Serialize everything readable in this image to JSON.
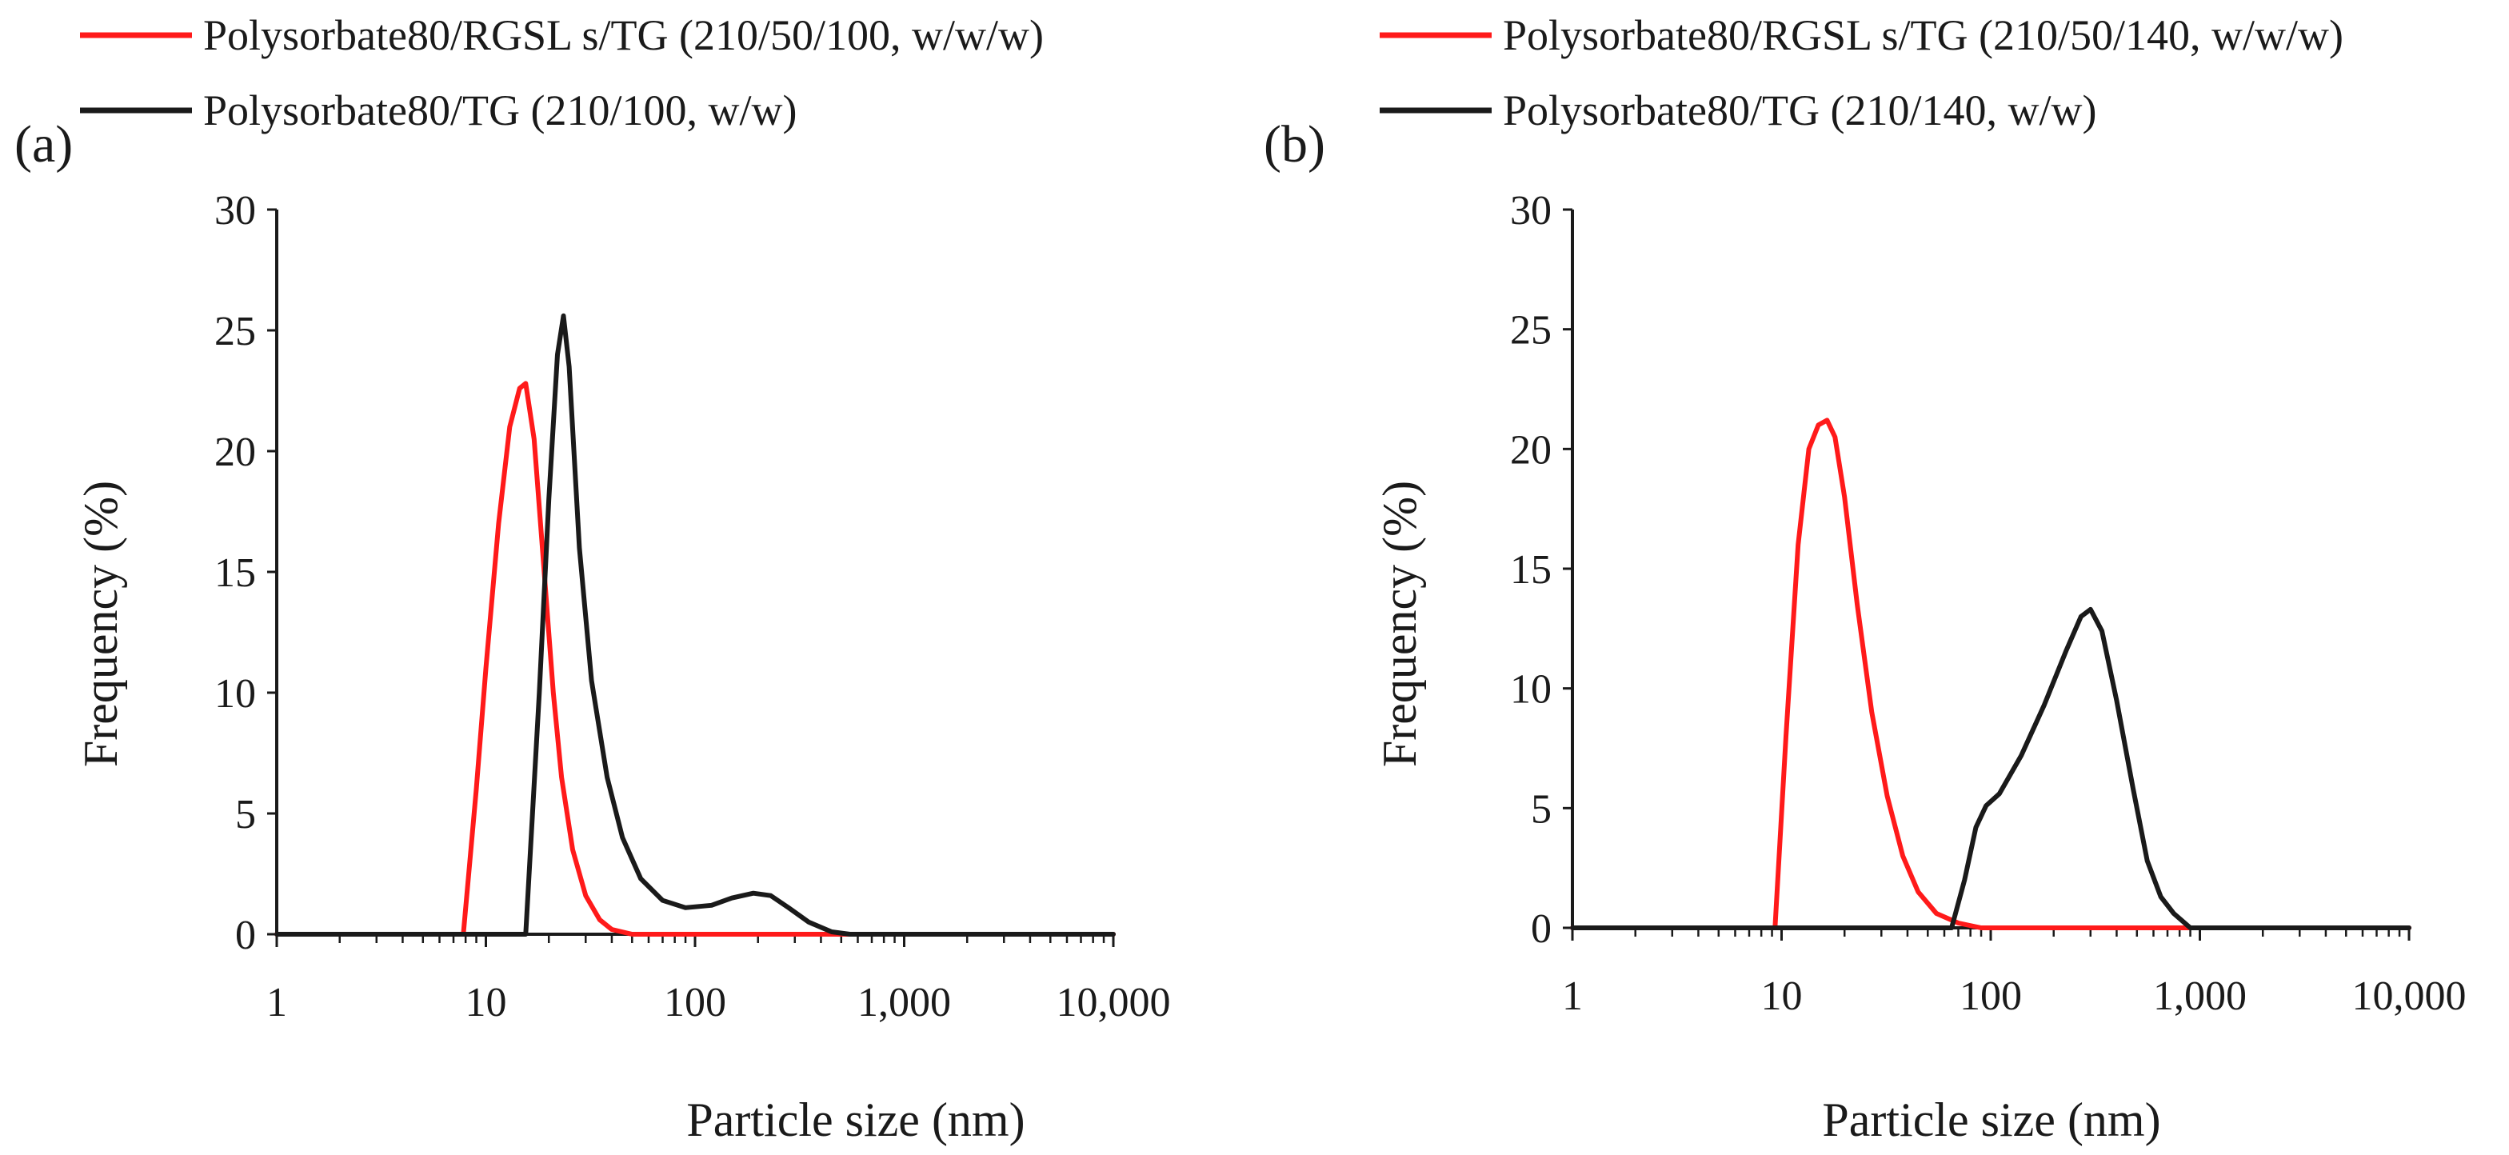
{
  "colors": {
    "red": "#ff1a1a",
    "black": "#1a1a1a"
  },
  "chart_data": [
    {
      "type": "line",
      "panel_label": "(a)",
      "xscale": "log",
      "xlim": [
        1,
        10000
      ],
      "ylim": [
        0,
        30
      ],
      "xticks": [
        1,
        10,
        100,
        1000,
        10000
      ],
      "xtick_labels": [
        "1",
        "10",
        "100",
        "1,000",
        "10,000"
      ],
      "yticks": [
        0,
        5,
        10,
        15,
        20,
        25,
        30
      ],
      "ytick_labels": [
        "0",
        "5",
        "10",
        "15",
        "20",
        "25",
        "30"
      ],
      "xlabel": "Particle size (nm)",
      "ylabel": "Frequency (%)",
      "series": [
        {
          "name": "Polysorbate80/RGSL s/TG (210/50/100, w/w/w)",
          "color": "#ff1a1a",
          "x": [
            1,
            7.8,
            9,
            10,
            11.5,
            13,
            14.5,
            15.5,
            17,
            19,
            21,
            23,
            26,
            30,
            35,
            40,
            50,
            70,
            100,
            1000,
            10000
          ],
          "y": [
            0,
            0,
            6,
            11,
            17,
            21,
            22.6,
            22.8,
            20.5,
            15,
            10,
            6.5,
            3.5,
            1.6,
            0.6,
            0.2,
            0,
            0,
            0,
            0,
            0
          ]
        },
        {
          "name": "Polysorbate80/TG (210/100, w/w)",
          "color": "#1a1a1a",
          "x": [
            1,
            15.5,
            18,
            20,
            22,
            23.5,
            25,
            28,
            32,
            38,
            45,
            55,
            70,
            90,
            120,
            150,
            190,
            230,
            280,
            350,
            450,
            550,
            1000,
            10000
          ],
          "y": [
            0,
            0,
            10,
            18,
            24,
            25.6,
            23.5,
            16,
            10.5,
            6.5,
            4,
            2.3,
            1.4,
            1.1,
            1.2,
            1.5,
            1.7,
            1.6,
            1.1,
            0.5,
            0.1,
            0,
            0,
            0
          ]
        }
      ]
    },
    {
      "type": "line",
      "panel_label": "(b)",
      "xscale": "log",
      "xlim": [
        1,
        10000
      ],
      "ylim": [
        0,
        30
      ],
      "xticks": [
        1,
        10,
        100,
        1000,
        10000
      ],
      "xtick_labels": [
        "1",
        "10",
        "100",
        "1,000",
        "10,000"
      ],
      "yticks": [
        0,
        5,
        10,
        15,
        20,
        25,
        30
      ],
      "ytick_labels": [
        "0",
        "5",
        "10",
        "15",
        "20",
        "25",
        "30"
      ],
      "xlabel": "Particle size (nm)",
      "ylabel": "Frequency (%)",
      "series": [
        {
          "name": "Polysorbate80/RGSL s/TG (210/50/140, w/w/w)",
          "color": "#ff1a1a",
          "x": [
            1,
            9.3,
            10.5,
            12,
            13.5,
            15,
            16.5,
            18,
            20,
            23,
            27,
            32,
            38,
            45,
            55,
            70,
            90,
            1000,
            10000
          ],
          "y": [
            0,
            0,
            8,
            16,
            20,
            21,
            21.2,
            20.5,
            18,
            13.5,
            9,
            5.5,
            3,
            1.5,
            0.6,
            0.2,
            0,
            0,
            0
          ],
          "note": ""
        },
        {
          "name": "Polysorbate80/TG (210/140, w/w)",
          "color": "#1a1a1a",
          "x": [
            1,
            65,
            75,
            85,
            95,
            110,
            140,
            180,
            230,
            270,
            300,
            340,
            400,
            480,
            560,
            650,
            750,
            900,
            1000,
            10000
          ],
          "y": [
            0,
            0,
            2,
            4.2,
            5.1,
            5.6,
            7.2,
            9.3,
            11.6,
            13.0,
            13.3,
            12.4,
            9.5,
            5.8,
            2.8,
            1.3,
            0.6,
            0,
            0,
            0
          ]
        }
      ]
    }
  ]
}
